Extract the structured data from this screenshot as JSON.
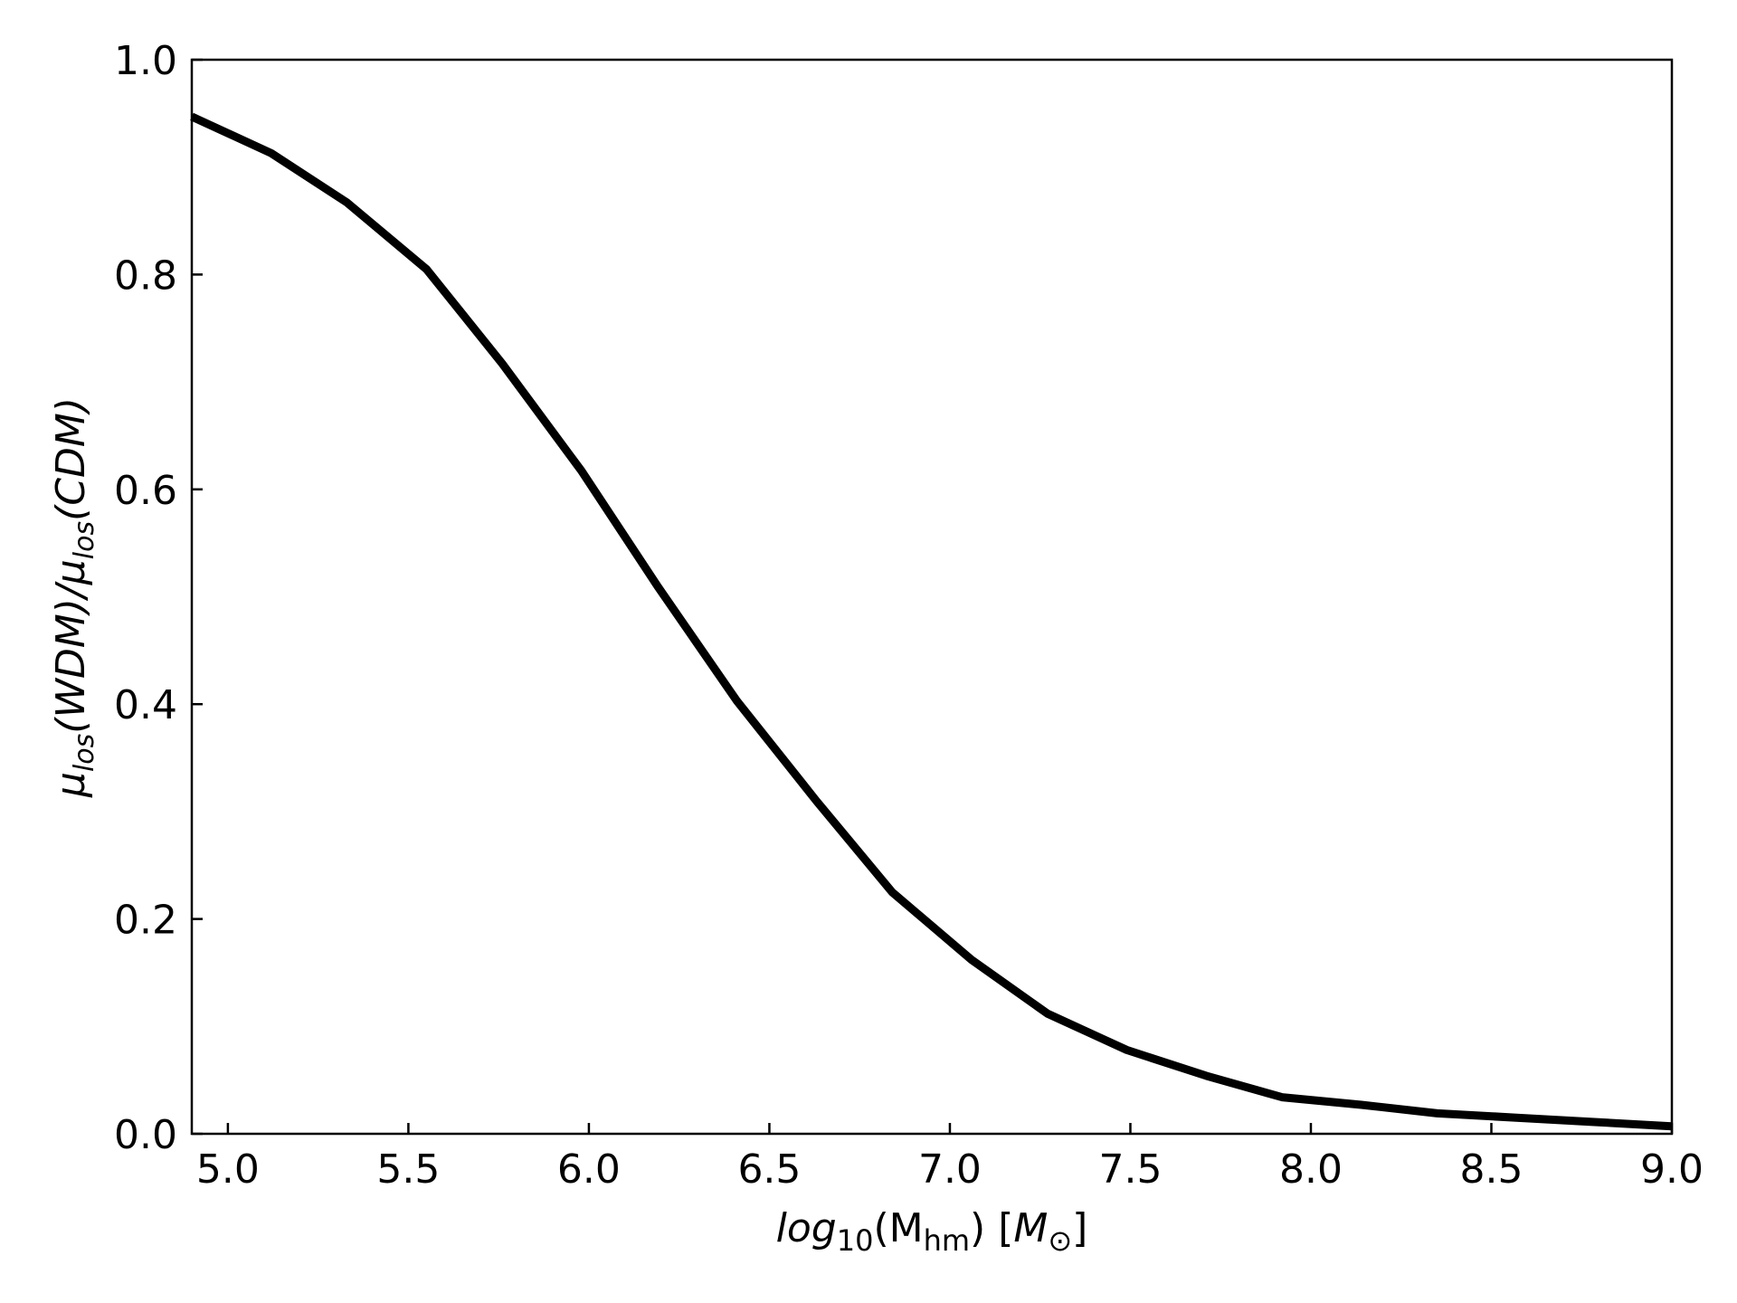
{
  "chart_data": {
    "type": "line",
    "title": "",
    "xlabel": {
      "prefix": "log",
      "prefix_sub": "10",
      "open": "(M",
      "open_sub": "hm",
      "close": ") [",
      "unit": "M",
      "unit_sub": "⊙",
      "end": "]"
    },
    "ylabel": {
      "a": "μ",
      "a_sub": "los",
      "b": "(WDM)/",
      "c": "μ",
      "c_sub": "los",
      "d": "(CDM)"
    },
    "xlim": [
      4.9,
      9.0
    ],
    "ylim": [
      0.0,
      1.0
    ],
    "xticks": [
      5.0,
      5.5,
      6.0,
      6.5,
      7.0,
      7.5,
      8.0,
      8.5,
      9.0
    ],
    "xtick_labels": [
      "5.0",
      "5.5",
      "6.0",
      "6.5",
      "7.0",
      "7.5",
      "8.0",
      "8.5",
      "9.0"
    ],
    "yticks": [
      0.0,
      0.2,
      0.4,
      0.6,
      0.8,
      1.0
    ],
    "ytick_labels": [
      "0.0",
      "0.2",
      "0.4",
      "0.6",
      "0.8",
      "1.0"
    ],
    "grid": false,
    "series": [
      {
        "color": "#000000",
        "x": [
          4.9,
          5.12,
          5.33,
          5.55,
          5.76,
          5.98,
          6.19,
          6.41,
          6.63,
          6.84,
          7.06,
          7.27,
          7.49,
          7.71,
          7.92,
          8.14,
          8.35,
          8.57,
          8.78,
          9.0
        ],
        "y": [
          0.947,
          0.913,
          0.867,
          0.805,
          0.717,
          0.617,
          0.51,
          0.403,
          0.31,
          0.225,
          0.162,
          0.112,
          0.078,
          0.054,
          0.034,
          0.027,
          0.019,
          0.015,
          0.011,
          0.007
        ]
      }
    ]
  }
}
